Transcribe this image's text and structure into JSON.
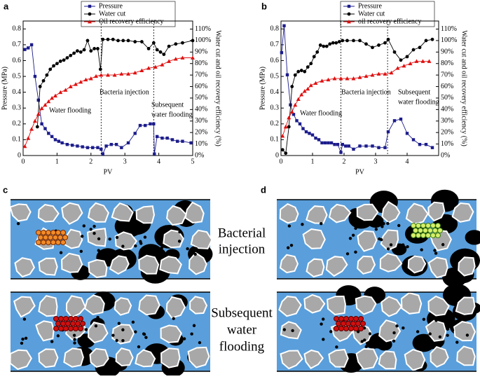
{
  "chart_data": [
    {
      "type": "line",
      "label": "a",
      "xlabel": "PV",
      "ylabel": "Pressure (MPa)",
      "y2label": "Water cut and oil recovery efficiency (%)",
      "xlim": [
        0,
        5
      ],
      "xticks": [
        0,
        1,
        2,
        3,
        4,
        5
      ],
      "ylim": [
        0,
        0.85
      ],
      "yticks": [
        0,
        0.1,
        0.2,
        0.3,
        0.4,
        0.5,
        0.6,
        0.7,
        0.8
      ],
      "y2lim": [
        0,
        117
      ],
      "y2ticks": [
        {
          "value": 0,
          "label": "0%"
        },
        {
          "value": 10,
          "label": "10%"
        },
        {
          "value": 20,
          "label": "20%"
        },
        {
          "value": 30,
          "label": "30%"
        },
        {
          "value": 40,
          "label": "40%"
        },
        {
          "value": 50,
          "label": "50%"
        },
        {
          "value": 60,
          "label": "60%"
        },
        {
          "value": 70,
          "label": "70%"
        },
        {
          "value": 80,
          "label": "80%"
        },
        {
          "value": 90,
          "label": "90%"
        },
        {
          "value": 100,
          "label": "100%"
        },
        {
          "value": 110,
          "label": "110%"
        }
      ],
      "vlines": [
        2.3,
        3.85
      ],
      "annotations": [
        {
          "lines": [
            "Water flooding"
          ]
        },
        {
          "lines": [
            "Bacteria injection"
          ]
        },
        {
          "lines": [
            "Subsequent",
            "water flooding"
          ]
        }
      ],
      "series": [
        {
          "name": "Pressure",
          "color": "#1c1c8c",
          "marker": "square",
          "axis": "y",
          "x": [
            0.05,
            0.15,
            0.25,
            0.35,
            0.45,
            0.55,
            0.65,
            0.75,
            0.85,
            0.95,
            1.05,
            1.15,
            1.3,
            1.45,
            1.6,
            1.75,
            1.9,
            2.05,
            2.2,
            2.3,
            2.35,
            2.45,
            2.6,
            2.75,
            2.9,
            3.1,
            3.3,
            3.45,
            3.6,
            3.75,
            3.85,
            3.87,
            3.95,
            4.1,
            4.25,
            4.4,
            4.55,
            4.7,
            4.95
          ],
          "values": [
            0.67,
            0.68,
            0.7,
            0.5,
            0.35,
            0.2,
            0.17,
            0.14,
            0.12,
            0.1,
            0.09,
            0.08,
            0.07,
            0.065,
            0.06,
            0.055,
            0.05,
            0.05,
            0.05,
            0.04,
            0.01,
            0.06,
            0.07,
            0.07,
            0.05,
            0.08,
            0.14,
            0.19,
            0.19,
            0.2,
            0.2,
            0.01,
            0.12,
            0.11,
            0.11,
            0.1,
            0.09,
            0.09,
            0.08
          ]
        },
        {
          "name": "Water cut",
          "color": "#000000",
          "marker": "circle",
          "axis": "y2",
          "x": [
            0.42,
            0.5,
            0.6,
            0.7,
            0.8,
            0.9,
            1.0,
            1.1,
            1.2,
            1.3,
            1.4,
            1.5,
            1.6,
            1.7,
            1.8,
            1.9,
            2.0,
            2.1,
            2.2,
            2.28,
            2.35,
            2.5,
            2.65,
            2.8,
            2.95,
            3.1,
            3.3,
            3.5,
            3.7,
            3.85,
            3.95,
            4.05,
            4.15,
            4.3,
            4.5,
            4.7,
            5.0
          ],
          "values": [
            25,
            60,
            65,
            70,
            75,
            78,
            80,
            82,
            83,
            85,
            87,
            89,
            91,
            90,
            92,
            100,
            91,
            93,
            93,
            75,
            101,
            101,
            101,
            100,
            100,
            100,
            99,
            99,
            93,
            98,
            92,
            90,
            88,
            95,
            97,
            98,
            100
          ]
        },
        {
          "name": "Oil recovery efficiency",
          "color": "#e01010",
          "marker": "triangle",
          "axis": "y2",
          "x": [
            0.05,
            0.15,
            0.25,
            0.35,
            0.45,
            0.55,
            0.65,
            0.75,
            0.85,
            0.95,
            1.1,
            1.25,
            1.4,
            1.55,
            1.7,
            1.85,
            2.0,
            2.15,
            2.3,
            2.5,
            2.7,
            2.9,
            3.1,
            3.3,
            3.5,
            3.7,
            3.9,
            4.1,
            4.3,
            4.5,
            4.7,
            5.0
          ],
          "values": [
            8,
            15,
            23,
            30,
            36,
            41,
            44,
            47,
            50,
            52,
            55,
            57,
            60,
            62,
            64,
            66,
            67,
            69,
            70,
            70,
            70,
            71,
            71,
            72,
            74,
            76,
            77,
            79,
            82,
            84,
            85,
            85
          ]
        }
      ]
    },
    {
      "type": "line",
      "label": "b",
      "xlabel": "PV",
      "ylabel": "Pressure (MPa)",
      "y2label": "Water cut and oil recovery efficiency (%)",
      "xlim": [
        0,
        5
      ],
      "xticks": [
        0,
        1,
        2,
        3,
        4
      ],
      "ylim": [
        0,
        0.85
      ],
      "yticks": [
        0,
        0.1,
        0.2,
        0.3,
        0.4,
        0.5,
        0.6,
        0.7,
        0.8
      ],
      "y2lim": [
        0,
        117
      ],
      "y2ticks": [
        {
          "value": 0,
          "label": "0%"
        },
        {
          "value": 10,
          "label": "10%"
        },
        {
          "value": 20,
          "label": "20%"
        },
        {
          "value": 30,
          "label": "30%"
        },
        {
          "value": 40,
          "label": "40%"
        },
        {
          "value": 50,
          "label": "50%"
        },
        {
          "value": 60,
          "label": "60%"
        },
        {
          "value": 70,
          "label": "70%"
        },
        {
          "value": 80,
          "label": "80%"
        },
        {
          "value": 90,
          "label": "90%"
        },
        {
          "value": 100,
          "label": "100%"
        },
        {
          "value": 110,
          "label": "110%"
        }
      ],
      "vlines": [
        1.9,
        3.38
      ],
      "annotations": [
        {
          "lines": [
            "Water flooding"
          ]
        },
        {
          "lines": [
            "Bacteria injection"
          ]
        },
        {
          "lines": [
            "Subsequent",
            "water flooding"
          ]
        }
      ],
      "series": [
        {
          "name": "Pressure",
          "color": "#1c1c8c",
          "marker": "square",
          "axis": "y",
          "x": [
            0.02,
            0.1,
            0.2,
            0.3,
            0.4,
            0.5,
            0.6,
            0.7,
            0.8,
            0.9,
            1.0,
            1.1,
            1.2,
            1.3,
            1.4,
            1.5,
            1.6,
            1.7,
            1.8,
            1.9,
            1.95,
            2.05,
            2.15,
            2.3,
            2.5,
            2.7,
            2.9,
            3.1,
            3.3,
            3.4,
            3.6,
            3.8,
            4.0,
            4.2,
            4.4,
            4.6,
            4.8
          ],
          "values": [
            0.65,
            0.82,
            0.51,
            0.32,
            0.26,
            0.22,
            0.2,
            0.17,
            0.15,
            0.14,
            0.13,
            0.11,
            0.1,
            0.08,
            0.08,
            0.08,
            0.08,
            0.07,
            0.07,
            0.02,
            0.07,
            0.06,
            0.06,
            0.04,
            0.06,
            0.06,
            0.06,
            0.05,
            0.05,
            0.15,
            0.22,
            0.23,
            0.14,
            0.1,
            0.07,
            0.07,
            0.05
          ]
        },
        {
          "name": "Water cut",
          "color": "#000000",
          "marker": "circle",
          "axis": "y2",
          "x": [
            0.05,
            0.15,
            0.25,
            0.35,
            0.45,
            0.55,
            0.65,
            0.75,
            0.85,
            0.95,
            1.05,
            1.15,
            1.25,
            1.35,
            1.45,
            1.55,
            1.65,
            1.75,
            1.85,
            1.95,
            2.1,
            2.3,
            2.5,
            2.7,
            2.9,
            3.1,
            3.3,
            3.4,
            3.6,
            3.8,
            4.0,
            4.2,
            4.4,
            4.6,
            4.8
          ],
          "values": [
            5,
            2,
            25,
            60,
            70,
            73,
            74,
            73,
            77,
            80,
            86,
            90,
            96,
            95,
            95,
            97,
            98,
            98,
            99,
            100,
            100,
            100,
            100,
            97,
            94,
            96,
            98,
            101,
            90,
            83,
            86,
            92,
            94,
            100,
            101
          ]
        },
        {
          "name": "oil recovery efficiency",
          "color": "#e01010",
          "marker": "triangle",
          "axis": "y2",
          "x": [
            0.05,
            0.15,
            0.25,
            0.35,
            0.45,
            0.55,
            0.65,
            0.75,
            0.85,
            0.95,
            1.1,
            1.3,
            1.5,
            1.7,
            1.9,
            2.1,
            2.3,
            2.5,
            2.7,
            2.9,
            3.1,
            3.3,
            3.5,
            3.7,
            3.9,
            4.1,
            4.3,
            4.5,
            4.7
          ],
          "values": [
            17,
            25,
            33,
            38,
            44,
            49,
            53,
            56,
            58,
            61,
            63,
            65,
            66,
            67,
            67,
            67,
            67,
            68,
            69,
            70,
            71,
            71,
            72,
            76,
            78,
            80,
            82,
            82,
            82
          ]
        }
      ]
    }
  ],
  "panels": [
    {
      "label": "c"
    },
    {
      "label": "d"
    }
  ],
  "captions": [
    {
      "lines": [
        "Bacterial",
        "injection"
      ]
    },
    {
      "lines": [
        "Subsequent",
        "water",
        "flooding"
      ]
    }
  ]
}
